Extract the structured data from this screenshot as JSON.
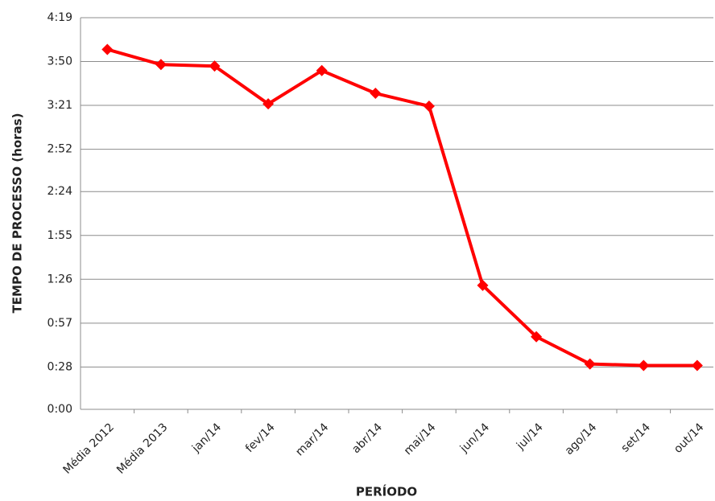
{
  "chart_data": {
    "type": "line",
    "y_label": "TEMPO DE PROCESSO  (horas)",
    "x_label": "PERÍODO",
    "categories": [
      "Média 2012",
      "Média 2013",
      "jan/14",
      "fev/14",
      "mar/14",
      "abr/14",
      "mai/14",
      "jun/14",
      "jul/14",
      "ago/14",
      "set/14",
      "out/14"
    ],
    "series": [
      {
        "name": "Tempo de processo",
        "color": "#ff0000",
        "values": [
          238,
          228,
          227,
          202,
          224,
          209,
          200.5,
          82,
          48,
          30,
          29,
          29
        ]
      }
    ],
    "ylim": [
      0,
      259
    ],
    "yticks": [
      {
        "value": 0,
        "label": "0:00"
      },
      {
        "value": 28,
        "label": "0:28"
      },
      {
        "value": 57,
        "label": "0:57"
      },
      {
        "value": 86,
        "label": "1:26"
      },
      {
        "value": 115,
        "label": "1:55"
      },
      {
        "value": 144,
        "label": "2:24"
      },
      {
        "value": 172,
        "label": "2:52"
      },
      {
        "value": 201,
        "label": "3:21"
      },
      {
        "value": 230,
        "label": "3:50"
      },
      {
        "value": 259,
        "label": "4:19"
      }
    ],
    "grid": true
  }
}
